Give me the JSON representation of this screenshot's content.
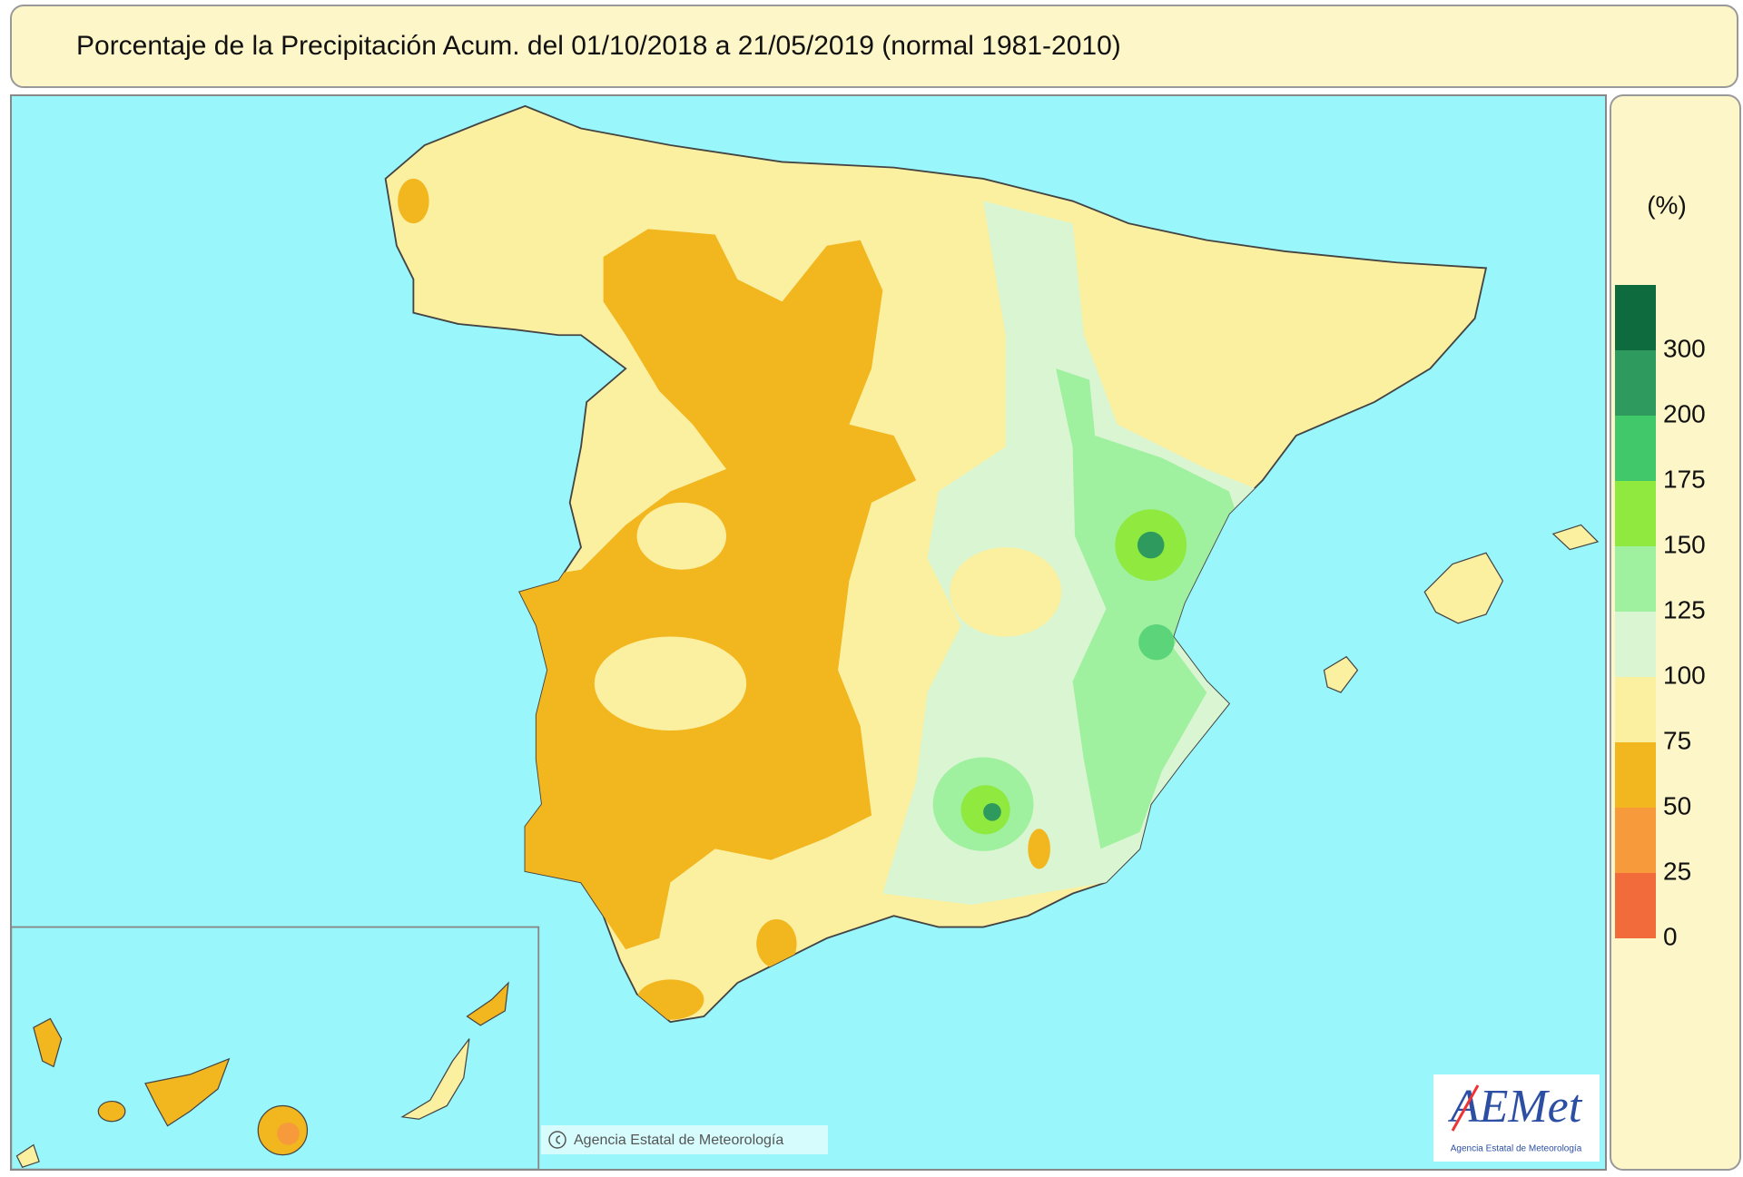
{
  "header": {
    "title": "Porcentaje de la Precipitación Acum. del 01/10/2018 a  21/05/2019  (normal 1981-2010)"
  },
  "legend": {
    "unit": "(%)",
    "breaks": [
      0,
      25,
      50,
      75,
      100,
      125,
      150,
      175,
      200,
      300
    ],
    "colors": [
      "#f26c3b",
      "#f79a3c",
      "#f2b61f",
      "#fbf0a0",
      "#d9f5d2",
      "#9ff09f",
      "#8fe93f",
      "#40c86a",
      "#2e9a5e",
      "#0d6b3d"
    ]
  },
  "map": {
    "copyright": "Agencia Estatal de Meteorología"
  },
  "logo": {
    "name": "AEMet",
    "subtitle": "Agencia Estatal de Meteorología"
  }
}
